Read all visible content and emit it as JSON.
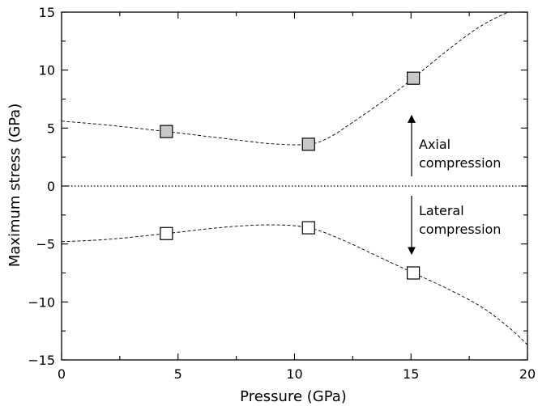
{
  "chart_data": {
    "type": "scatter",
    "title": "",
    "xlabel": "Pressure (GPa)",
    "ylabel": "Maximum stress (GPa)",
    "xlim": [
      0,
      20
    ],
    "ylim": [
      -15,
      15
    ],
    "x_ticks": [
      0,
      5,
      10,
      15,
      20
    ],
    "y_ticks": [
      -15,
      -10,
      -5,
      0,
      5,
      10,
      15
    ],
    "x_tick_labels": [
      "0",
      "5",
      "10",
      "15",
      "20"
    ],
    "y_tick_labels": [
      "−15",
      "−10",
      "−5",
      "0",
      "5",
      "10",
      "15"
    ],
    "grid": false,
    "zero_line": true,
    "series": [
      {
        "marker": "filled-square",
        "color": "#c8c8c8",
        "points": [
          [
            4.5,
            4.7
          ],
          [
            10.6,
            3.6
          ],
          [
            15.1,
            9.3
          ]
        ],
        "fit_curve": [
          [
            0,
            5.6
          ],
          [
            2,
            5.25
          ],
          [
            4.5,
            4.7
          ],
          [
            7,
            4.1
          ],
          [
            9,
            3.65
          ],
          [
            10.6,
            3.6
          ],
          [
            11.5,
            4.2
          ],
          [
            12.5,
            5.5
          ],
          [
            14,
            7.6
          ],
          [
            15.1,
            9.3
          ],
          [
            16.5,
            11.6
          ],
          [
            18,
            13.8
          ],
          [
            19.5,
            15.3
          ],
          [
            20,
            15.6
          ]
        ]
      },
      {
        "marker": "open-square",
        "color": "#ffffff",
        "points": [
          [
            4.5,
            -4.1
          ],
          [
            10.6,
            -3.6
          ],
          [
            15.1,
            -7.5
          ]
        ],
        "fit_curve": [
          [
            0,
            -4.8
          ],
          [
            2,
            -4.6
          ],
          [
            4.5,
            -4.1
          ],
          [
            7,
            -3.55
          ],
          [
            9,
            -3.35
          ],
          [
            10.6,
            -3.6
          ],
          [
            12,
            -4.6
          ],
          [
            13.5,
            -6.0
          ],
          [
            15.1,
            -7.5
          ],
          [
            16.5,
            -8.8
          ],
          [
            18,
            -10.4
          ],
          [
            19.2,
            -12.2
          ],
          [
            20,
            -13.7
          ]
        ]
      }
    ],
    "annotations": [
      {
        "lines": [
          "Axial",
          "compression"
        ],
        "arrow": "up"
      },
      {
        "lines": [
          "Lateral",
          "compression"
        ],
        "arrow": "down"
      }
    ]
  }
}
